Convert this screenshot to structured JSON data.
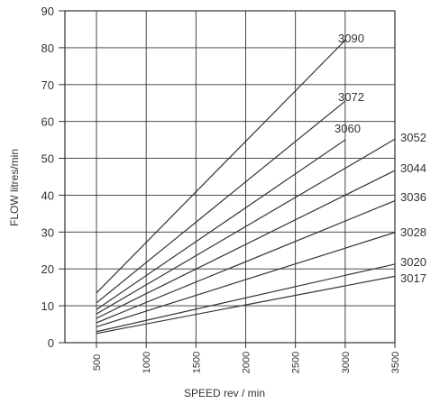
{
  "chart_data": {
    "type": "line",
    "title": "",
    "xlabel": "SPEED rev / min",
    "ylabel": "FLOW litres/min",
    "xlim": [
      500,
      3500
    ],
    "ylim": [
      0,
      90
    ],
    "xticks": [
      "500",
      "1000",
      "1500",
      "2000",
      "2500",
      "3000",
      "3500"
    ],
    "yticks": [
      "0",
      "10",
      "20",
      "30",
      "40",
      "50",
      "60",
      "70",
      "80",
      "90"
    ],
    "grid": true,
    "legend": "series labels placed at line ends (right side)",
    "series": [
      {
        "name": "3090",
        "x": [
          500,
          3000
        ],
        "y": [
          13.5,
          82
        ]
      },
      {
        "name": "3072",
        "x": [
          500,
          3000
        ],
        "y": [
          10.8,
          65.5
        ]
      },
      {
        "name": "3060",
        "x": [
          500,
          3000
        ],
        "y": [
          9.0,
          55
        ]
      },
      {
        "name": "3052",
        "x": [
          500,
          3500
        ],
        "y": [
          7.8,
          55.2
        ]
      },
      {
        "name": "3044",
        "x": [
          500,
          3500
        ],
        "y": [
          6.6,
          46.7
        ]
      },
      {
        "name": "3036",
        "x": [
          500,
          3500
        ],
        "y": [
          5.4,
          38.5
        ]
      },
      {
        "name": "3028",
        "x": [
          500,
          3500
        ],
        "y": [
          4.3,
          29.9
        ]
      },
      {
        "name": "3020",
        "x": [
          500,
          3500
        ],
        "y": [
          3.0,
          21.3
        ]
      },
      {
        "name": "3017",
        "x": [
          500,
          3500
        ],
        "y": [
          2.5,
          18.0
        ]
      }
    ]
  },
  "colors": {
    "line": "#333333",
    "grid": "#333333",
    "text": "#333333"
  }
}
